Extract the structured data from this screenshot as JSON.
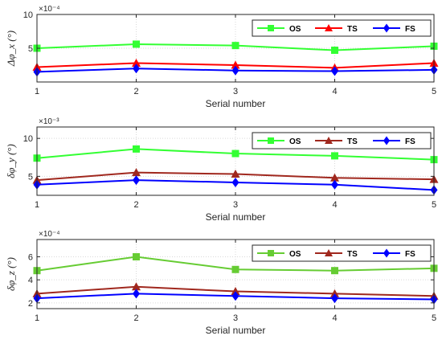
{
  "chart_data": [
    {
      "type": "line",
      "xlabel": "Serial number",
      "ylabel": "Δφ_x (°)",
      "exponent": "×10⁻⁴",
      "x": [
        1,
        2,
        3,
        4,
        5
      ],
      "xlim": [
        1,
        5
      ],
      "ylim": [
        0,
        10
      ],
      "yticks": [
        5,
        10
      ],
      "grid": true,
      "legend_position": "top-right",
      "series": [
        {
          "name": "OS",
          "color": "#33ff33",
          "marker": "square",
          "values": [
            5.0,
            5.6,
            5.4,
            4.7,
            5.3
          ]
        },
        {
          "name": "TS",
          "color": "#ff0000",
          "marker": "triangle",
          "values": [
            2.2,
            2.8,
            2.5,
            2.1,
            2.8
          ]
        },
        {
          "name": "FS",
          "color": "#0000ff",
          "marker": "diamond",
          "values": [
            1.5,
            2.0,
            1.7,
            1.6,
            1.8
          ]
        }
      ]
    },
    {
      "type": "line",
      "xlabel": "Serial number",
      "ylabel": "δφ_y (°)",
      "exponent": "×10⁻³",
      "x": [
        1,
        2,
        3,
        4,
        5
      ],
      "xlim": [
        1,
        5
      ],
      "ylim": [
        2.5,
        11.5
      ],
      "yticks": [
        5,
        10
      ],
      "grid": true,
      "legend_position": "top-right",
      "series": [
        {
          "name": "OS",
          "color": "#33ff33",
          "marker": "square",
          "values": [
            7.4,
            8.6,
            8.0,
            7.7,
            7.2
          ]
        },
        {
          "name": "TS",
          "color": "#a0281e",
          "marker": "triangle",
          "values": [
            4.5,
            5.5,
            5.3,
            4.8,
            4.6
          ]
        },
        {
          "name": "FS",
          "color": "#0000ff",
          "marker": "diamond",
          "values": [
            3.9,
            4.5,
            4.2,
            3.9,
            3.2
          ]
        }
      ]
    },
    {
      "type": "line",
      "xlabel": "Serial number",
      "ylabel": "δφ_z (°)",
      "exponent": "×10⁻⁴",
      "x": [
        1,
        2,
        3,
        4,
        5
      ],
      "xlim": [
        1,
        5
      ],
      "ylim": [
        1.5,
        7.5
      ],
      "yticks": [
        2,
        4,
        6
      ],
      "grid": true,
      "legend_position": "top-right",
      "series": [
        {
          "name": "OS",
          "color": "#66cc33",
          "marker": "square",
          "values": [
            4.8,
            6.0,
            4.9,
            4.8,
            5.0
          ]
        },
        {
          "name": "TS",
          "color": "#a0281e",
          "marker": "triangle",
          "values": [
            2.8,
            3.4,
            3.0,
            2.8,
            2.6
          ]
        },
        {
          "name": "FS",
          "color": "#0000ff",
          "marker": "diamond",
          "values": [
            2.4,
            2.8,
            2.6,
            2.4,
            2.3
          ]
        }
      ]
    }
  ]
}
